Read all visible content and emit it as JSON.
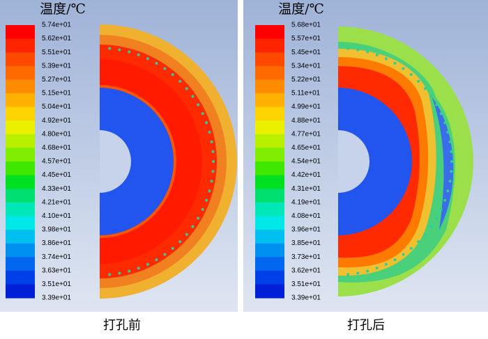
{
  "panels": [
    {
      "title": "温度/℃",
      "caption": "打孔前",
      "levels": [
        "5.74e+01",
        "5.62e+01",
        "5.51e+01",
        "5.39e+01",
        "5.27e+01",
        "5.15e+01",
        "5.04e+01",
        "4.92e+01",
        "4.80e+01",
        "4.68e+01",
        "4.57e+01",
        "4.45e+01",
        "4.33e+01",
        "4.21e+01",
        "4.10e+01",
        "3.98e+01",
        "3.86e+01",
        "3.74e+01",
        "3.63e+01",
        "3.51e+01",
        "3.39e+01"
      ]
    },
    {
      "title": "温度/℃",
      "caption": "打孔后",
      "levels": [
        "5.68e+01",
        "5.57e+01",
        "5.45e+01",
        "5.34e+01",
        "5.22e+01",
        "5.11e+01",
        "4.99e+01",
        "4.88e+01",
        "4.77e+01",
        "4.65e+01",
        "4.54e+01",
        "4.42e+01",
        "4.31e+01",
        "4.19e+01",
        "4.08e+01",
        "3.96e+01",
        "3.85e+01",
        "3.73e+01",
        "3.62e+01",
        "3.51e+01",
        "3.39e+01"
      ]
    }
  ]
}
